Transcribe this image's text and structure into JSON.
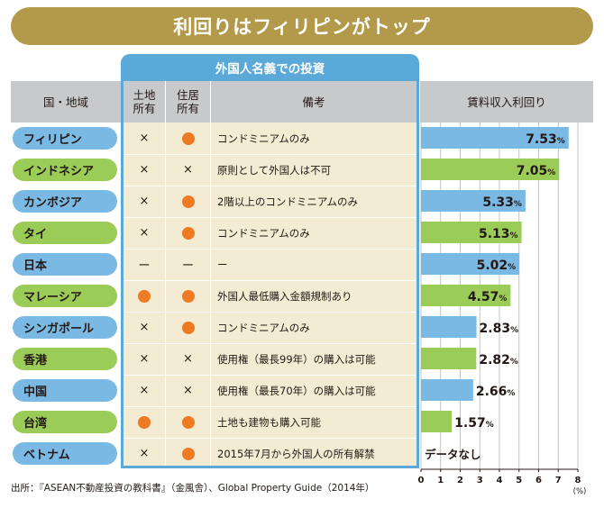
{
  "title": "利回りはフィリピンがトップ",
  "foreign_header": "外国人名義での投資",
  "headers": {
    "country": "国・地域",
    "land": "土地\n所有",
    "house": "住居\n所有",
    "notes": "備考",
    "yield": "賃料収入利回り"
  },
  "rows": [
    {
      "country": "フィリピン",
      "land": "×",
      "house": "●",
      "note": "コンドミニアムのみ",
      "pill_color": "#7ab9e3",
      "bar_color": "#7ab9e3"
    },
    {
      "country": "インドネシア",
      "land": "×",
      "house": "×",
      "note": "原則として外国人は不可",
      "pill_color": "#9ccc58",
      "bar_color": "#9ccc58"
    },
    {
      "country": "カンボジア",
      "land": "×",
      "house": "●",
      "note": "2階以上のコンドミニアムのみ",
      "pill_color": "#7ab9e3",
      "bar_color": "#7ab9e3"
    },
    {
      "country": "タイ",
      "land": "×",
      "house": "●",
      "note": "コンドミニアムのみ",
      "pill_color": "#9ccc58",
      "bar_color": "#9ccc58"
    },
    {
      "country": "日本",
      "land": "ー",
      "house": "ー",
      "note": "ー",
      "pill_color": "#7ab9e3",
      "bar_color": "#7ab9e3"
    },
    {
      "country": "マレーシア",
      "land": "●",
      "house": "●",
      "note": "外国人最低購入金額規制あり",
      "pill_color": "#9ccc58",
      "bar_color": "#9ccc58"
    },
    {
      "country": "シンガポール",
      "land": "×",
      "house": "●",
      "note": "コンドミニアムのみ",
      "pill_color": "#7ab9e3",
      "bar_color": "#7ab9e3"
    },
    {
      "country": "香港",
      "land": "×",
      "house": "×",
      "note": "使用権（最長99年）の購入は可能",
      "pill_color": "#9ccc58",
      "bar_color": "#9ccc58"
    },
    {
      "country": "中国",
      "land": "×",
      "house": "×",
      "note": "使用権（最長70年）の購入は可能",
      "pill_color": "#7ab9e3",
      "bar_color": "#7ab9e3"
    },
    {
      "country": "台湾",
      "land": "●",
      "house": "●",
      "note": "土地も建物も購入可能",
      "pill_color": "#9ccc58",
      "bar_color": "#9ccc58"
    },
    {
      "country": "ベトナム",
      "land": "×",
      "house": "●",
      "note": "2015年7月から外国人の所有解禁",
      "pill_color": "#7ab9e3",
      "bar_color": "#7ab9e3"
    }
  ],
  "chart_data": {
    "type": "bar",
    "orientation": "horizontal",
    "categories": [
      "フィリピン",
      "インドネシア",
      "カンボジア",
      "タイ",
      "日本",
      "マレーシア",
      "シンガポール",
      "香港",
      "中国",
      "台湾",
      "ベトナム"
    ],
    "values": [
      7.53,
      7.05,
      5.33,
      5.13,
      5.02,
      4.57,
      2.83,
      2.82,
      2.66,
      1.57,
      null
    ],
    "data_labels": [
      "7.53",
      "7.05",
      "5.33",
      "5.13",
      "5.02",
      "4.57",
      "2.83",
      "2.82",
      "2.66",
      "1.57",
      ""
    ],
    "label_unit": "%",
    "no_data_label": "データなし",
    "title": "賃料収入利回り",
    "xlabel": "(%)",
    "xlim": [
      0,
      8
    ],
    "ticks": [
      "0",
      "1",
      "2",
      "3",
      "4",
      "5",
      "6",
      "7",
      "8"
    ],
    "grid": true
  },
  "source": "出所：『ASEAN不動産投資の教科書』（金風舎）、Global Property Guide（2014年）",
  "colors": {
    "title_bg": "#b39a4a",
    "foreign_header_bg": "#5aa9d9",
    "header_bg": "#c8c9ca",
    "table_bg": "#f3ecd3",
    "orange_mark": "#ee7b24"
  }
}
